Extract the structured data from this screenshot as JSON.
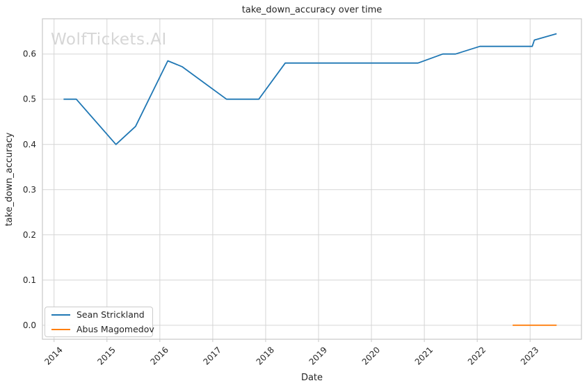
{
  "chart_data": {
    "type": "line",
    "title": "take_down_accuracy over time",
    "xlabel": "Date",
    "ylabel": "take_down_accuracy",
    "watermark": "WolfTickets.AI",
    "grid": true,
    "legend_position": "lower left",
    "xlim": [
      2013.78,
      2023.97
    ],
    "ylim": [
      -0.031,
      0.678
    ],
    "xticks": [
      2014,
      2015,
      2016,
      2017,
      2018,
      2019,
      2020,
      2021,
      2022,
      2023
    ],
    "xtick_labels": [
      "2014",
      "2015",
      "2016",
      "2017",
      "2018",
      "2019",
      "2020",
      "2021",
      "2022",
      "2023"
    ],
    "yticks": [
      0.0,
      0.1,
      0.2,
      0.3,
      0.4,
      0.5,
      0.6
    ],
    "ytick_labels": [
      "0.0",
      "0.1",
      "0.2",
      "0.3",
      "0.4",
      "0.5",
      "0.6"
    ],
    "series": [
      {
        "name": "Sean Strickland",
        "color": "#1f77b4",
        "x": [
          2014.18,
          2014.42,
          2015.17,
          2015.54,
          2016.15,
          2016.42,
          2017.26,
          2017.87,
          2018.37,
          2020.88,
          2021.35,
          2021.59,
          2022.05,
          2023.04,
          2023.08,
          2023.5
        ],
        "y": [
          0.5,
          0.5,
          0.4,
          0.44,
          0.585,
          0.572,
          0.5,
          0.5,
          0.58,
          0.58,
          0.6,
          0.6,
          0.617,
          0.617,
          0.631,
          0.645
        ]
      },
      {
        "name": "Abus Magomedov",
        "color": "#ff7f0e",
        "x": [
          2022.67,
          2023.5
        ],
        "y": [
          0.0,
          0.0
        ]
      }
    ],
    "styles": {
      "grid_color": "#d5d5d5",
      "border_color": "#c9c9c9",
      "text_color": "#262626",
      "watermark_color": "#d6d6d6",
      "background": "#ffffff"
    }
  }
}
